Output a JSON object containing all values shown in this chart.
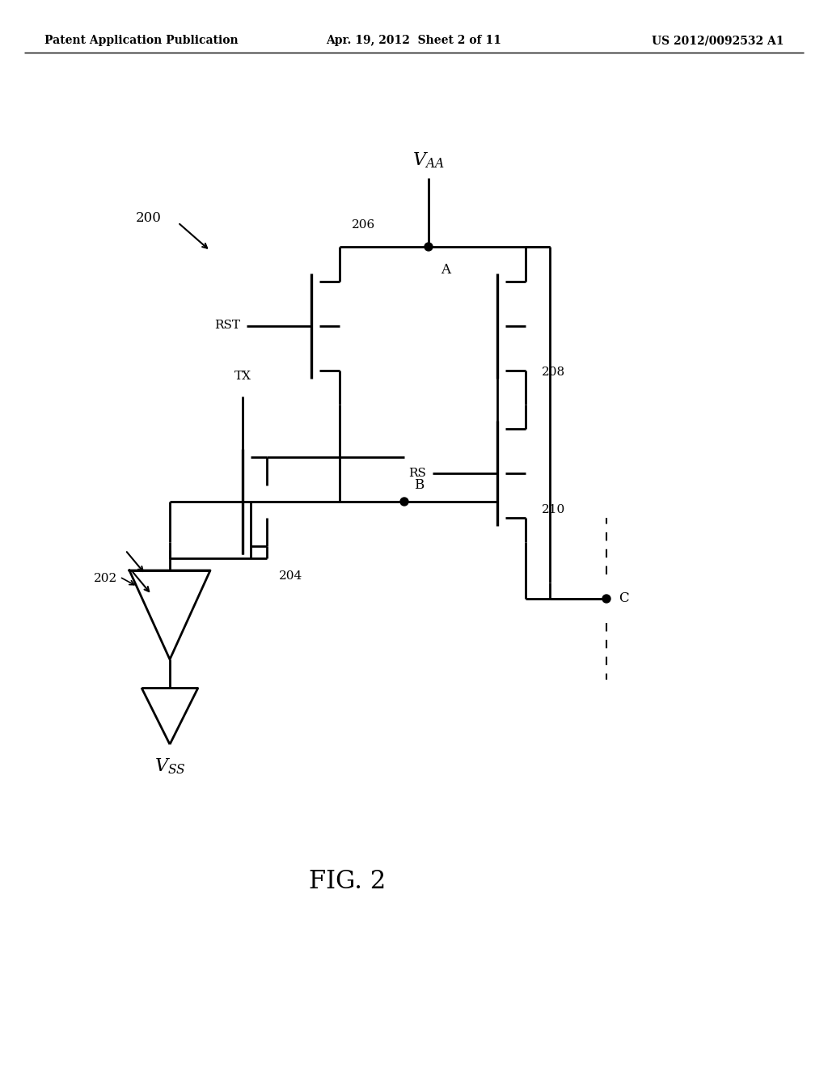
{
  "header_left": "Patent Application Publication",
  "header_center": "Apr. 19, 2012  Sheet 2 of 11",
  "header_right": "US 2012/0092532 A1",
  "fig_label": "FIG. 2",
  "bg_color": "#ffffff",
  "line_color": "#000000",
  "label_200": "200",
  "label_202": "202",
  "label_204": "204",
  "label_206": "206",
  "label_208": "208",
  "label_210": "210",
  "label_VAA": "$V_{AA}$",
  "label_VSS": "$V_{SS}$",
  "label_A": "A",
  "label_B": "B",
  "label_C": "C",
  "label_RST": "RST",
  "label_TX": "TX",
  "label_RS": "RS"
}
